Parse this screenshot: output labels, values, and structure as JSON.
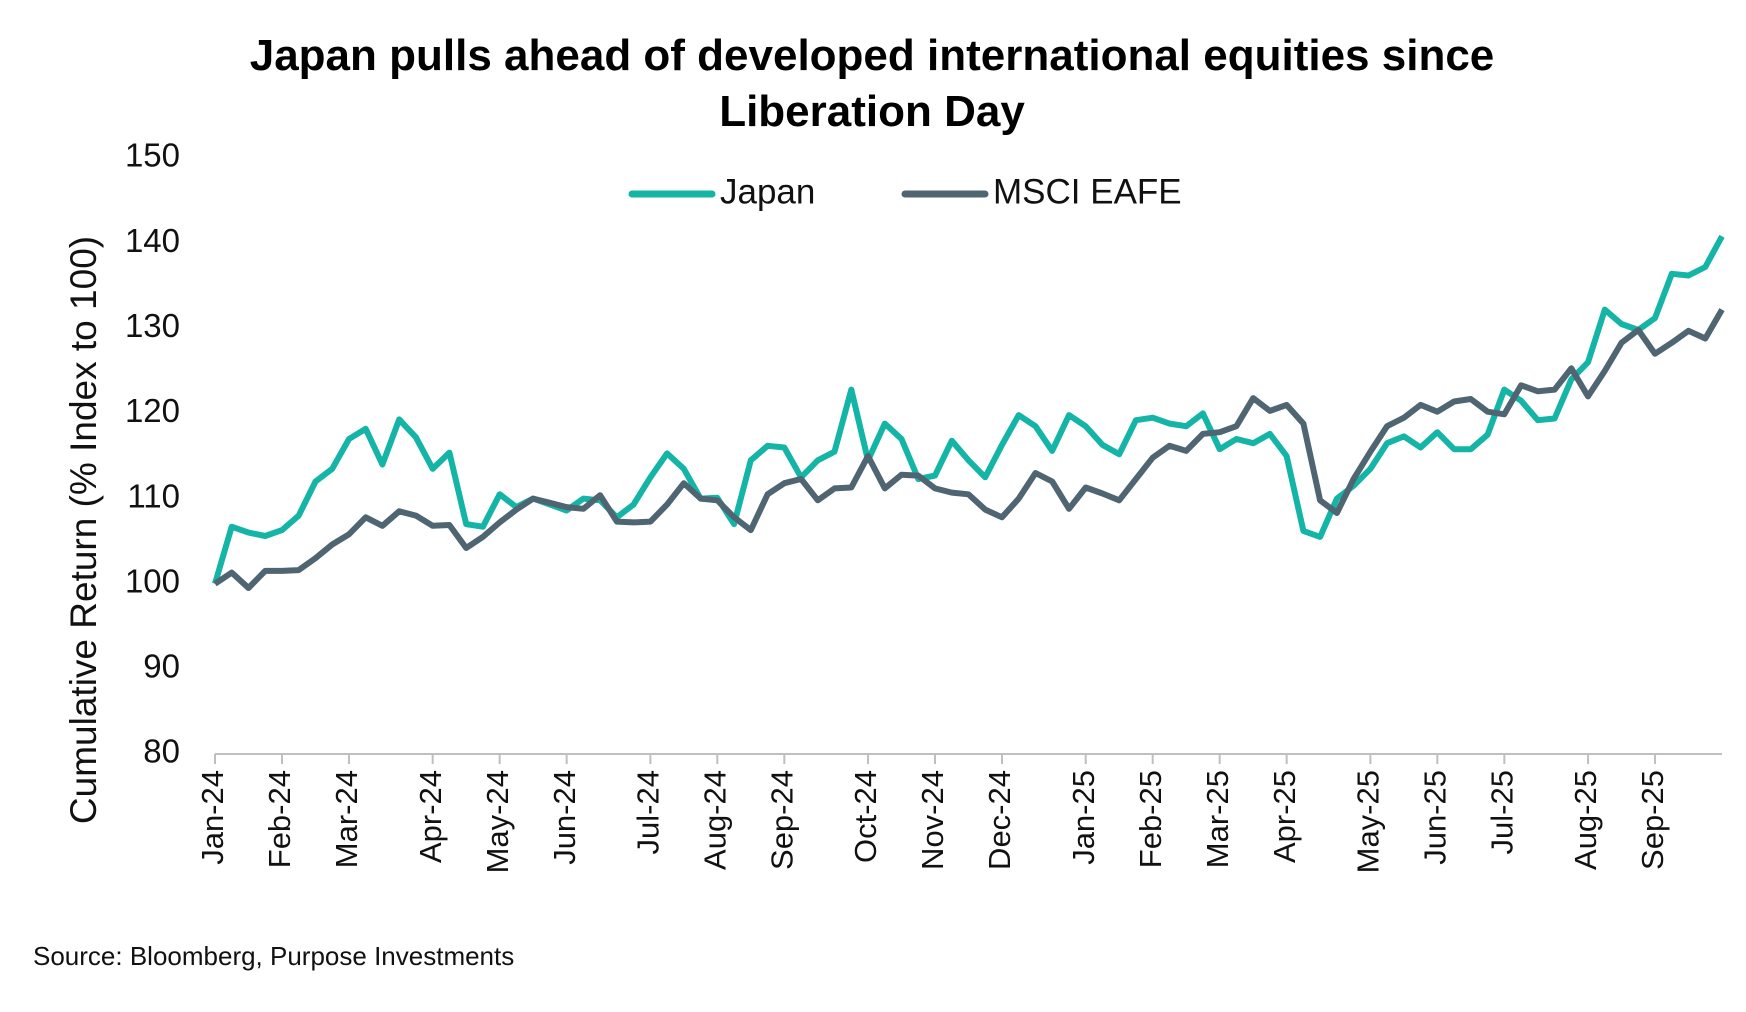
{
  "chart_data": {
    "type": "line",
    "title": "Japan pulls ahead of developed international equities since Liberation Day",
    "ylabel": "Cumulative Return (% Index to 100)",
    "source": "Source: Bloomberg, Purpose Investments",
    "legend": "top",
    "categories": [
      "Jan-24",
      null,
      null,
      null,
      "Feb-24",
      null,
      null,
      null,
      "Mar-24",
      null,
      null,
      null,
      null,
      "Apr-24",
      null,
      null,
      null,
      "May-24",
      null,
      null,
      null,
      "Jun-24",
      null,
      null,
      null,
      null,
      "Jul-24",
      null,
      null,
      null,
      "Aug-24",
      null,
      null,
      null,
      "Sep-24",
      null,
      null,
      null,
      null,
      "Oct-24",
      null,
      null,
      null,
      "Nov-24",
      null,
      null,
      null,
      "Dec-24",
      null,
      null,
      null,
      null,
      "Jan-25",
      null,
      null,
      null,
      "Feb-25",
      null,
      null,
      null,
      "Mar-25",
      null,
      null,
      null,
      "Apr-25",
      null,
      null,
      null,
      null,
      "May-25",
      null,
      null,
      null,
      "Jun-25",
      null,
      null,
      null,
      "Jul-25",
      null,
      null,
      null,
      null,
      "Aug-25",
      null,
      null,
      null,
      "Sep-25",
      null,
      null,
      null,
      null
    ],
    "series": [
      {
        "name": "Japan",
        "color": "#14b5a6",
        "values": [
          100,
          106.7,
          106,
          105.6,
          106.3,
          108,
          112,
          113.5,
          117,
          118.2,
          114,
          119.3,
          117.2,
          113.5,
          115.4,
          107,
          106.7,
          110.5,
          109,
          110,
          109.3,
          108.6,
          110,
          109.8,
          107.8,
          109.3,
          112.5,
          115.3,
          113.5,
          110,
          110.1,
          107,
          114.5,
          116.2,
          116,
          112.5,
          114.5,
          115.5,
          122.8,
          114.5,
          118.8,
          117,
          112.3,
          112.7,
          116.8,
          114.5,
          112.5,
          116.3,
          119.8,
          118.5,
          115.6,
          119.8,
          118.5,
          116.3,
          115.2,
          119.2,
          119.5,
          118.8,
          118.5,
          120,
          115.8,
          117,
          116.5,
          117.6,
          115,
          106.2,
          105.5,
          110,
          111.5,
          113.5,
          116.5,
          117.3,
          116,
          117.8,
          115.8,
          115.8,
          117.5,
          122.8,
          121.5,
          119.2,
          119.4,
          124,
          126,
          132.2,
          130.5,
          129.8,
          131.2,
          136.4,
          136.2,
          137.2,
          140.8
        ]
      },
      {
        "name": "MSCI EAFE",
        "color": "#4f6572",
        "values": [
          100,
          101.3,
          99.5,
          101.5,
          101.5,
          101.6,
          103,
          104.6,
          105.8,
          107.8,
          106.8,
          108.5,
          108,
          106.8,
          106.9,
          104.2,
          105.5,
          107.2,
          108.7,
          110,
          109.5,
          109,
          108.8,
          110.4,
          107.3,
          107.2,
          107.3,
          109.3,
          111.8,
          110,
          109.8,
          107.8,
          106.3,
          110.5,
          111.8,
          112.3,
          109.8,
          111.2,
          111.3,
          115,
          111.2,
          112.8,
          112.7,
          111.2,
          110.7,
          110.5,
          108.7,
          107.8,
          110,
          113,
          112,
          108.8,
          111.3,
          110.6,
          109.8,
          112.3,
          114.8,
          116.2,
          115.6,
          117.6,
          117.8,
          118.5,
          121.8,
          120.3,
          121,
          118.8,
          109.8,
          108.3,
          112.3,
          115.5,
          118.5,
          119.5,
          121,
          120.2,
          121.4,
          121.7,
          120.2,
          119.9,
          123.3,
          122.6,
          122.8,
          125.3,
          122,
          125,
          128.3,
          129.8,
          127,
          128.3,
          129.7,
          128.8,
          132.2
        ]
      }
    ],
    "ylim": [
      80,
      150
    ],
    "yticks": [
      80,
      90,
      100,
      110,
      120,
      130,
      140,
      150
    ]
  }
}
